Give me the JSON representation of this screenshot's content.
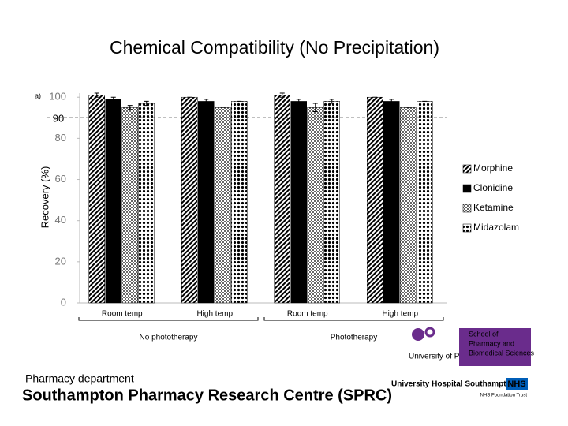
{
  "chart_data": {
    "type": "bar",
    "title": "Chemical Compatibility (No Precipitation)",
    "panel_label": "a)",
    "y_label": "Recovery (%)",
    "categories": [
      "Room temp",
      "High temp",
      "Room temp",
      "High temp"
    ],
    "groups": [
      {
        "label": "No phototherapy",
        "span": [
          0,
          1
        ]
      },
      {
        "label": "Phototherapy",
        "span": [
          2,
          3
        ]
      }
    ],
    "series": [
      {
        "name": "Morphine",
        "color": "#000000",
        "pattern": "hatch",
        "values": [
          101,
          100,
          101,
          100
        ],
        "errors": [
          1,
          0,
          1,
          0
        ]
      },
      {
        "name": "Clonidine",
        "color": "#000000",
        "pattern": "solid",
        "values": [
          99,
          98,
          98,
          98
        ],
        "errors": [
          1,
          1,
          1,
          1
        ]
      },
      {
        "name": "Ketamine",
        "color": "#000000",
        "pattern": "check",
        "values": [
          95,
          95,
          95,
          95
        ],
        "errors": [
          1,
          0,
          2,
          0
        ]
      },
      {
        "name": "Midazolam",
        "color": "#000000",
        "pattern": "dots",
        "values": [
          97,
          98,
          98,
          98
        ],
        "errors": [
          1,
          0,
          1,
          0
        ]
      }
    ],
    "reference_line": {
      "value": 90,
      "label": "90"
    },
    "ylim": [
      0,
      102
    ],
    "yticks": [
      0,
      20,
      40,
      60,
      80,
      100
    ],
    "legend": "right"
  },
  "footer": {
    "department": "Pharmacy department",
    "centre": "Southampton Pharmacy Research Centre (SPRC)",
    "portsmouth": "University of Portsmouth",
    "school": [
      "School of",
      "Pharmacy and",
      "Biomedical Sciences"
    ],
    "hospital": "University Hospital Southampton",
    "nhs": "NHS",
    "trust": "NHS Foundation Trust"
  }
}
